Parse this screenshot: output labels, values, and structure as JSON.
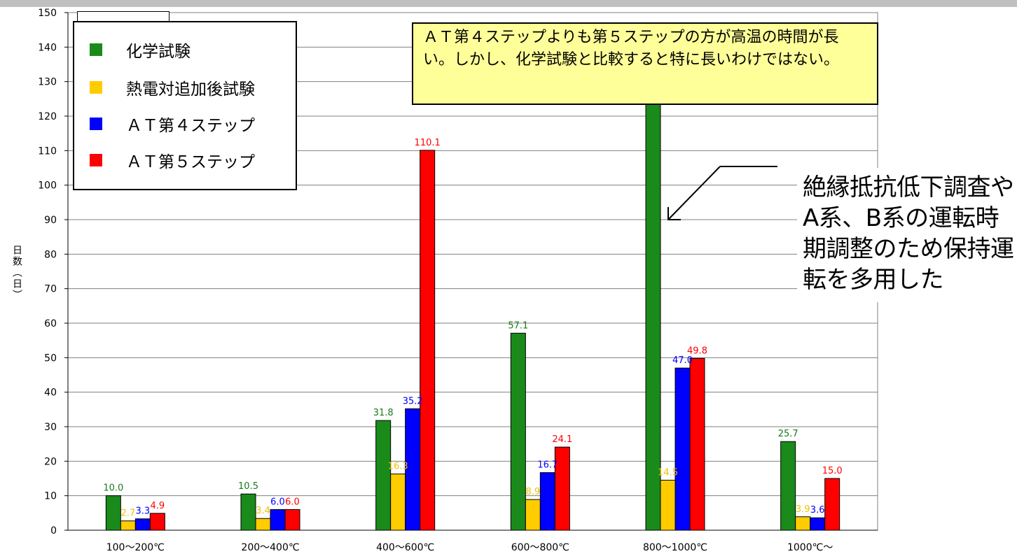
{
  "chart_data": {
    "type": "bar",
    "ylabel": "日数（日）",
    "ylim": [
      0,
      150
    ],
    "yticks": [
      0,
      10,
      20,
      30,
      40,
      50,
      60,
      70,
      80,
      90,
      100,
      110,
      120,
      130,
      140,
      150
    ],
    "grid": true,
    "legend_position": "top-left",
    "categories": [
      "100～200℃",
      "200～400℃",
      "400～600℃",
      "600～800℃",
      "800～1000℃",
      "1000℃～"
    ],
    "series": [
      {
        "name": "化学試験",
        "color": "#1a8a1a",
        "values": [
          10.0,
          10.5,
          31.8,
          57.1,
          126.0,
          25.7
        ],
        "labels": [
          "10.0",
          "10.5",
          "31.8",
          "57.1",
          "",
          "25.7"
        ]
      },
      {
        "name": "熱電対追加後試験",
        "color": "#ffcc00",
        "values": [
          2.7,
          3.4,
          16.3,
          8.9,
          14.5,
          3.9
        ],
        "labels": [
          "2.7",
          "3.4",
          "16.3",
          "8.9",
          "14.5",
          "3.9"
        ]
      },
      {
        "name": "ＡＴ第４ステップ",
        "color": "#0000ff",
        "values": [
          3.3,
          6.0,
          35.2,
          16.7,
          47.0,
          3.6
        ],
        "labels": [
          "3.3",
          "6.0",
          "35.2",
          "16.7",
          "47.0",
          "3.6"
        ]
      },
      {
        "name": "ＡＴ第５ステップ",
        "color": "#ff0000",
        "values": [
          4.9,
          6.0,
          110.1,
          24.1,
          49.8,
          15.0
        ],
        "labels": [
          "4.9",
          "6.0",
          "110.1",
          "24.1",
          "49.8",
          "15.0"
        ]
      }
    ],
    "label_colors": [
      "#1a7a1a",
      "#f0c000",
      "#0000ff",
      "#ff0000"
    ]
  },
  "callout": {
    "text": "ＡＴ第４ステップよりも第５ステップの方が高温の時間が長い。しかし、化学試験と比較すると特に長いわけではない。"
  },
  "side_note": {
    "text": "絶縁抵抗低下調査やA系、B系の運転時期調整のため保持運転を多用した"
  }
}
